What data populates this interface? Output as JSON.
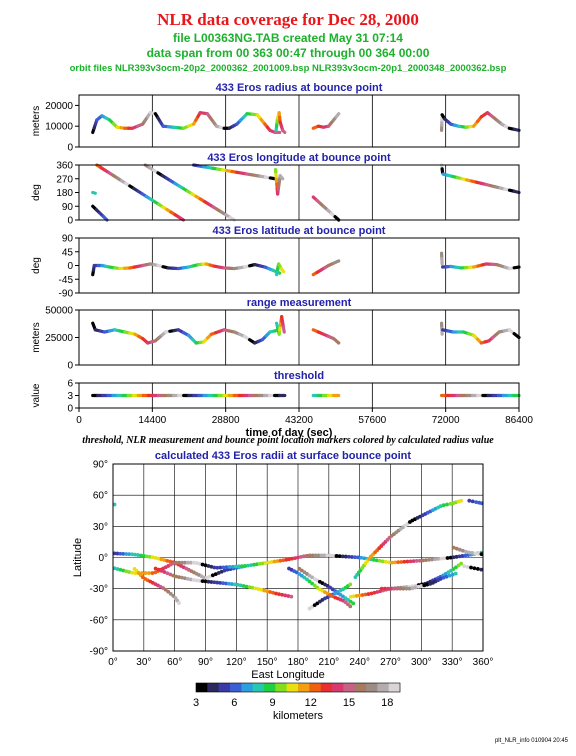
{
  "header": {
    "title": "NLR data coverage for Dec 28, 2000",
    "file_line": "file L00363NG.TAB created May 31 07:14",
    "span_line": "data span from 00 363 00:47 through 00 364 00:00",
    "orbit_line": "orbit files NLR393v3ocm-20p2_2000362_2001009.bsp NLR393v3ocm-20p1_2000348_2000362.bsp"
  },
  "caption": "threshold, NLR measurement and bounce point location markers colored by calculated radius value",
  "footer": "plt_NLR_info 010904 20:45",
  "colors": {
    "title": "#e8161b",
    "subtitle": "#1db12c",
    "panel_title": "#2222aa"
  },
  "chart_data": [
    {
      "type": "line",
      "title": "433 Eros radius at bounce point",
      "ylabel": "meters",
      "xlim": [
        0,
        86400
      ],
      "ylim": [
        0,
        25000
      ],
      "yticks": [
        "0",
        "10000",
        "20000"
      ],
      "ytick_values": [
        0,
        10000,
        20000
      ],
      "xticks": [],
      "vlines": [
        14400,
        28800,
        43200,
        57600,
        72000
      ],
      "grid": false,
      "series": [
        {
          "x": [
            2700,
            3500,
            4500,
            6000,
            7500,
            9000,
            10500,
            12500,
            14000,
            15000,
            16500,
            18500,
            20500,
            22500,
            23800,
            25200,
            27000,
            28500,
            29500,
            31000,
            33000,
            35000,
            36500,
            37500,
            38500,
            39400
          ],
          "y": [
            7000,
            13000,
            15000,
            13000,
            9500,
            9000,
            9000,
            11000,
            16500,
            16000,
            10000,
            9500,
            9000,
            11000,
            16500,
            16000,
            10000,
            9000,
            9000,
            11000,
            16000,
            15500,
            11000,
            8000,
            7000,
            7000
          ]
        },
        {
          "x": [
            38700,
            39000,
            39300,
            39500,
            40000,
            40400
          ],
          "y": [
            8000,
            14000,
            16500,
            12000,
            8000,
            7000
          ]
        },
        {
          "x": [
            46000,
            47000,
            48000,
            49000,
            50000,
            51000
          ],
          "y": [
            9000,
            10000,
            9500,
            10000,
            13000,
            16000
          ]
        },
        {
          "x": [
            71200,
            71300,
            71800,
            73000,
            74500,
            76000,
            77500,
            79000,
            80200,
            81500,
            83000,
            84500,
            86400
          ],
          "y": [
            8000,
            15500,
            13500,
            11000,
            10000,
            9500,
            10000,
            14500,
            16500,
            14000,
            11000,
            9000,
            8000
          ]
        }
      ]
    },
    {
      "type": "line",
      "title": "433 Eros longitude at bounce point",
      "ylabel": "deg",
      "xlim": [
        0,
        86400
      ],
      "ylim": [
        0,
        360
      ],
      "yticks": [
        "0",
        "90",
        "180",
        "270",
        "360"
      ],
      "ytick_values": [
        0,
        90,
        180,
        270,
        360
      ],
      "xticks": [],
      "vlines": [
        14400,
        28800,
        43200,
        57600,
        72000
      ],
      "grid": false,
      "series": [
        {
          "x": [
            2700,
            5500
          ],
          "y": [
            90,
            0
          ]
        },
        {
          "x": [
            2700,
            3200
          ],
          "y": [
            180,
            175
          ]
        },
        {
          "x": [
            3500,
            20500
          ],
          "y": [
            360,
            0
          ]
        },
        {
          "x": [
            13000,
            30500
          ],
          "y": [
            360,
            0
          ]
        },
        {
          "x": [
            22500,
            38500
          ],
          "y": [
            360,
            270
          ]
        },
        {
          "x": [
            38600,
            39000,
            39500,
            40000
          ],
          "y": [
            330,
            170,
            290,
            270
          ]
        },
        {
          "x": [
            46000,
            51000
          ],
          "y": [
            150,
            0
          ]
        },
        {
          "x": [
            71200,
            71400
          ],
          "y": [
            360,
            310
          ]
        },
        {
          "x": [
            71500,
            86400
          ],
          "y": [
            300,
            180
          ]
        }
      ]
    },
    {
      "type": "line",
      "title": "433 Eros latitude at bounce point",
      "ylabel": "deg",
      "xlim": [
        0,
        86400
      ],
      "ylim": [
        -90,
        90
      ],
      "yticks": [
        "-90",
        "-45",
        "0",
        "45",
        "90"
      ],
      "ytick_values": [
        -90,
        -45,
        0,
        45,
        90
      ],
      "xticks": [],
      "vlines": [
        14400,
        28800,
        43200,
        57600,
        72000
      ],
      "grid": false,
      "series": [
        {
          "x": [
            2700,
            3000,
            4500,
            6000,
            8000,
            10000,
            12500,
            14000,
            15500,
            17500,
            19500,
            21500,
            23500,
            25000,
            26500,
            28500,
            30500,
            32500,
            34500,
            36500,
            38000,
            39400
          ],
          "y": [
            -30,
            0,
            0,
            -5,
            -10,
            -8,
            0,
            5,
            0,
            -8,
            -10,
            -5,
            3,
            5,
            -2,
            -8,
            -10,
            -5,
            3,
            -5,
            -15,
            -25
          ]
        },
        {
          "x": [
            38800,
            39200,
            39700,
            40200
          ],
          "y": [
            -30,
            5,
            -10,
            -20
          ]
        },
        {
          "x": [
            46000,
            47500,
            49000,
            51000
          ],
          "y": [
            -30,
            -15,
            0,
            15
          ]
        },
        {
          "x": [
            71200,
            71300
          ],
          "y": [
            40,
            5
          ]
        },
        {
          "x": [
            71400,
            73000,
            75000,
            77500,
            80000,
            82000,
            84500,
            86400
          ],
          "y": [
            -5,
            -3,
            -8,
            -5,
            5,
            3,
            -10,
            -5
          ]
        }
      ]
    },
    {
      "type": "line",
      "title": "range measurement",
      "ylabel": "meters",
      "xlim": [
        0,
        86400
      ],
      "ylim": [
        0,
        50000
      ],
      "yticks": [
        "0",
        "25000",
        "50000"
      ],
      "ytick_values": [
        0,
        25000,
        50000
      ],
      "xticks": [],
      "vlines": [
        14400,
        28800,
        43200,
        57600,
        72000
      ],
      "grid": false,
      "series": [
        {
          "x": [
            2700,
            3200,
            5000,
            7000,
            9000,
            11000,
            12500,
            13500,
            15000,
            17000,
            19500,
            21500,
            23000,
            24500,
            26000,
            28500,
            30500,
            32500,
            34500,
            36000,
            37500,
            39400
          ],
          "y": [
            38000,
            32000,
            30000,
            32000,
            30000,
            28000,
            24000,
            20000,
            22000,
            30000,
            32000,
            27000,
            20000,
            21000,
            28000,
            32000,
            30000,
            26000,
            20000,
            23000,
            30000,
            32000
          ]
        },
        {
          "x": [
            38800,
            39300,
            39800,
            40300
          ],
          "y": [
            38000,
            28000,
            44000,
            30000
          ]
        },
        {
          "x": [
            46000,
            48000,
            50000,
            51000
          ],
          "y": [
            32000,
            28000,
            24000,
            20000
          ]
        },
        {
          "x": [
            71200,
            71300
          ],
          "y": [
            38000,
            28000
          ]
        },
        {
          "x": [
            71400,
            73500,
            75500,
            77500,
            79000,
            80500,
            82500,
            84500,
            86400
          ],
          "y": [
            32000,
            30000,
            30000,
            27000,
            20000,
            22000,
            30000,
            32000,
            25000
          ]
        }
      ]
    },
    {
      "type": "line",
      "title": "threshold",
      "ylabel": "value",
      "xlabel": "time of day (sec)",
      "xlim": [
        0,
        86400
      ],
      "ylim": [
        0,
        6
      ],
      "yticks": [
        "0",
        "3",
        "6"
      ],
      "ytick_values": [
        0,
        3,
        6
      ],
      "xticks": [
        "0",
        "14400",
        "28800",
        "43200",
        "57600",
        "72000",
        "86400"
      ],
      "xtick_values": [
        0,
        14400,
        28800,
        43200,
        57600,
        72000,
        86400
      ],
      "vlines": [
        14400,
        28800,
        43200,
        57600,
        72000
      ],
      "grid": false,
      "series": [
        {
          "x": [
            2700,
            40400
          ],
          "y": [
            3,
            3
          ]
        },
        {
          "x": [
            46000,
            51000
          ],
          "y": [
            3,
            3
          ]
        },
        {
          "x": [
            71200,
            86400
          ],
          "y": [
            3,
            3
          ]
        }
      ]
    },
    {
      "type": "scatter",
      "title": "calculated 433 Eros radii at surface bounce point",
      "xlabel": "East Longitude",
      "ylabel": "Latitude",
      "xlim": [
        0,
        360
      ],
      "ylim": [
        -90,
        90
      ],
      "xticks": [
        "0°",
        "30°",
        "60°",
        "90°",
        "120°",
        "150°",
        "180°",
        "210°",
        "240°",
        "270°",
        "300°",
        "330°",
        "360°"
      ],
      "xtick_values": [
        0,
        30,
        60,
        90,
        120,
        150,
        180,
        210,
        240,
        270,
        300,
        330,
        360
      ],
      "yticks": [
        "-90°",
        "-60°",
        "-30°",
        "0°",
        "30°",
        "60°",
        "90°"
      ],
      "ytick_values": [
        -90,
        -60,
        -30,
        0,
        30,
        60,
        90
      ],
      "grid": true,
      "series": [
        {
          "x": [
            0,
            20,
            40,
            60,
            70,
            80,
            90,
            110,
            130,
            150,
            170,
            190,
            210,
            240,
            270,
            300,
            330,
            350,
            360
          ],
          "y": [
            4,
            3,
            0,
            -5,
            -10,
            -15,
            -20,
            -12,
            -8,
            -5,
            -2,
            2,
            2,
            0,
            -5,
            -3,
            0,
            3,
            5
          ]
        },
        {
          "x": [
            0,
            20,
            30,
            40,
            50,
            60,
            80,
            100,
            130
          ],
          "y": [
            -10,
            -15,
            -15,
            -15,
            -10,
            -5,
            -5,
            -10,
            -8
          ]
        },
        {
          "x": [
            20,
            30,
            40,
            50,
            60,
            65
          ],
          "y": [
            -10,
            -20,
            -25,
            -30,
            -38,
            -45
          ]
        },
        {
          "x": [
            40,
            60,
            80,
            100,
            120,
            140,
            160,
            175
          ],
          "y": [
            -10,
            -18,
            -22,
            -24,
            -26,
            -30,
            -35,
            -38
          ]
        },
        {
          "x": [
            180,
            195,
            210,
            220,
            235
          ],
          "y": [
            -10,
            -20,
            -28,
            -35,
            -45
          ]
        },
        {
          "x": [
            190,
            205,
            215,
            225,
            232
          ],
          "y": [
            -50,
            -40,
            -35,
            -30,
            -25
          ]
        },
        {
          "x": [
            170,
            180,
            190,
            200,
            215,
            225,
            232
          ],
          "y": [
            -10,
            -15,
            -22,
            -30,
            -38,
            -42,
            -48
          ]
        },
        {
          "x": [
            235,
            250,
            270,
            290,
            310,
            320,
            330,
            340
          ],
          "y": [
            -20,
            0,
            20,
            35,
            45,
            50,
            52,
            55
          ]
        },
        {
          "x": [
            230,
            250,
            270,
            290,
            305,
            320,
            330,
            340
          ],
          "y": [
            -38,
            -35,
            -30,
            -28,
            -25,
            -18,
            -12,
            -5
          ]
        },
        {
          "x": [
            260,
            290,
            310,
            320,
            335
          ],
          "y": [
            -30,
            -30,
            -25,
            -20,
            -15
          ]
        },
        {
          "x": [
            330,
            345,
            360
          ],
          "y": [
            10,
            5,
            3
          ]
        },
        {
          "x": [
            340,
            350,
            360
          ],
          "y": [
            -8,
            -10,
            -12
          ]
        },
        {
          "x": [
            345,
            355,
            360
          ],
          "y": [
            55,
            53,
            52
          ]
        },
        {
          "x": [
            0,
            3
          ],
          "y": [
            52,
            50
          ]
        }
      ]
    },
    {
      "type": "heatmap",
      "role": "colorbar",
      "label": "kilometers",
      "range": [
        3,
        19
      ],
      "ticks": [
        "3",
        "6",
        "9",
        "12",
        "15",
        "18"
      ],
      "tick_values": [
        3,
        6,
        9,
        12,
        15,
        18
      ],
      "colors": [
        "#000000",
        "#2a2a5e",
        "#3a3aa8",
        "#3a5ed4",
        "#2aa0e0",
        "#28c8b0",
        "#20d040",
        "#80e020",
        "#e8e010",
        "#f0a010",
        "#f06010",
        "#e83030",
        "#d83a70",
        "#c86088",
        "#a87a60",
        "#9c8c82",
        "#b4acb0",
        "#d8d4d8"
      ]
    }
  ]
}
